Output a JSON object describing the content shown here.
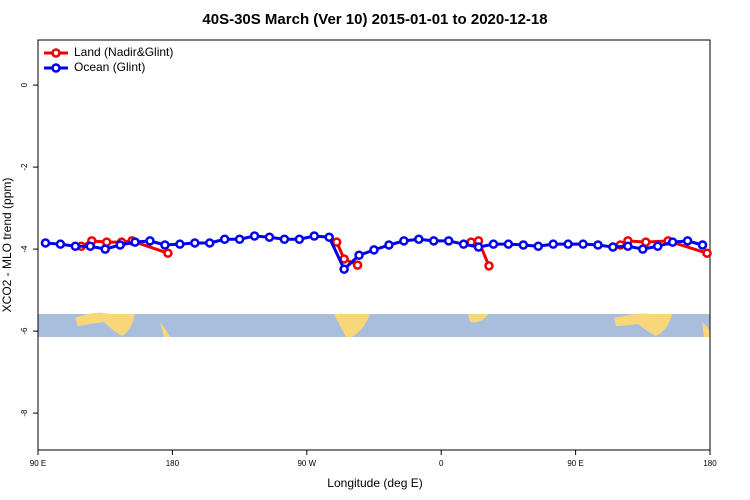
{
  "chart_data": {
    "type": "line",
    "title": "40S-30S March (Ver 10)   2015-01-01 to 2020-12-18",
    "x_label": "Longitude (deg E)",
    "y_label": "XCO2 - MLO trend (ppm)",
    "xlim": [
      90,
      540
    ],
    "xticks": [
      {
        "value": 90,
        "label": "90 E"
      },
      180,
      {
        "value": 270,
        "label": "90 W"
      },
      {
        "value": 360,
        "label": "0"
      },
      {
        "value": 450,
        "label": "90 E"
      },
      {
        "value": 540,
        "label": "180"
      }
    ],
    "ylim": [
      -8.9,
      1.1
    ],
    "yticks": [
      0,
      -2,
      -4,
      -6,
      -8
    ],
    "legend": "top-left",
    "series": [
      {
        "name": "Land (Nadir&Glint)",
        "color": "#ee0000",
        "x": [
          119,
          126,
          136,
          146,
          153,
          177,
          230,
          290,
          295,
          304,
          340,
          380,
          385,
          392,
          430,
          480,
          485,
          497,
          512,
          538
        ],
        "values": [
          -3.93,
          -3.8,
          -3.83,
          -3.83,
          -3.8,
          -4.1,
          null,
          -3.83,
          -4.24,
          -4.39,
          null,
          -3.83,
          -3.8,
          -4.41,
          null,
          -3.9,
          -3.8,
          -3.83,
          -3.8,
          -4.1
        ]
      },
      {
        "name": "Ocean (Glint)",
        "color": "#0000ee",
        "x": [
          95,
          105,
          115,
          125,
          135,
          145,
          155,
          165,
          175,
          185,
          195,
          205,
          215,
          225,
          235,
          245,
          255,
          265,
          275,
          285,
          295,
          305,
          315,
          325,
          335,
          345,
          355,
          365,
          375,
          385,
          395,
          405,
          415,
          425,
          435,
          445,
          455,
          465,
          475,
          485,
          495,
          505,
          515,
          525,
          535
        ],
        "values": [
          -3.85,
          -3.88,
          -3.93,
          -3.93,
          -4.0,
          -3.9,
          -3.83,
          -3.8,
          -3.9,
          -3.88,
          -3.85,
          -3.85,
          -3.76,
          -3.76,
          -3.68,
          -3.71,
          -3.76,
          -3.76,
          -3.68,
          -3.71,
          -4.49,
          -4.15,
          -4.02,
          -3.9,
          -3.8,
          -3.76,
          -3.8,
          -3.8,
          -3.88,
          -3.95,
          -3.88,
          -3.88,
          -3.9,
          -3.93,
          -3.88,
          -3.88,
          -3.88,
          -3.9,
          -3.95,
          -3.93,
          -4.0,
          -3.93,
          -3.83,
          -3.8,
          -3.9
        ]
      }
    ]
  }
}
